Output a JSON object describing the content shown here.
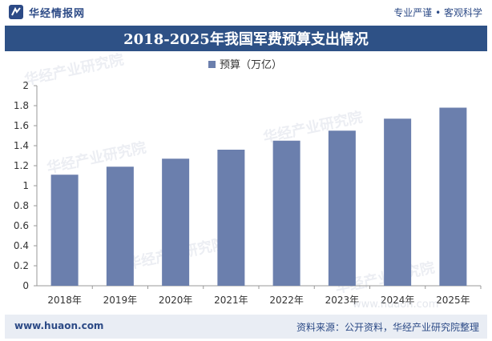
{
  "header": {
    "brand_name": "华经情报网",
    "slogan": "专业严谨 • 客观科学",
    "logo_icon": "huajing-logo-icon"
  },
  "title_bar": {
    "title": "2018-2025年我国军费预算支出情况"
  },
  "watermark": {
    "text_cn": "华经产业研究院",
    "text_en": "www.huaon.com"
  },
  "colors": {
    "bar": "#6b7fad",
    "title_bg": "#2e5186",
    "footer_bg": "#e9edf4",
    "brand": "#2c4a86"
  },
  "chart_data": {
    "type": "bar",
    "title": "2018-2025年我国军费预算支出情况",
    "categories": [
      "2018年",
      "2019年",
      "2020年",
      "2021年",
      "2022年",
      "2023年",
      "2024年",
      "2025年"
    ],
    "series": [
      {
        "name": "预算（万亿）",
        "values": [
          1.11,
          1.19,
          1.27,
          1.36,
          1.45,
          1.55,
          1.67,
          1.78
        ]
      }
    ],
    "ylim": [
      0,
      2
    ],
    "yticks": [
      0,
      0.2,
      0.4,
      0.6,
      0.8,
      1,
      1.2,
      1.4,
      1.6,
      1.8,
      2
    ],
    "ytick_labels": [
      "0",
      "0.2",
      "0.4",
      "0.6",
      "0.8",
      "1",
      "1.2",
      "1.4",
      "1.6",
      "1.8",
      "2"
    ],
    "xlabel": "",
    "ylabel": "",
    "legend_position": "top-center",
    "grid": false
  },
  "footer": {
    "website": "www.huaon.com",
    "source": "资料来源：公开资料，华经产业研究院整理"
  }
}
